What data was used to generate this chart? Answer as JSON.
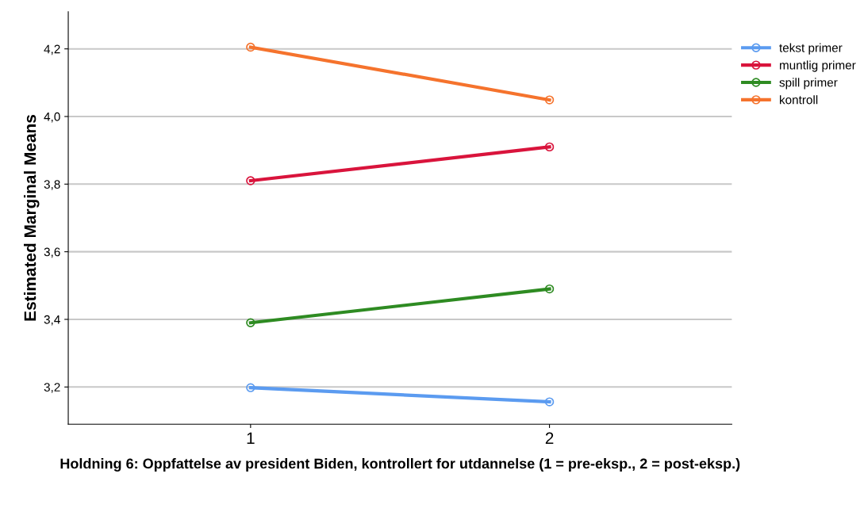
{
  "chart_data": {
    "type": "line",
    "xlabel": "Holdning 6: Oppfattelse av president Biden, kontrollert for utdannelse (1 = pre-eksp., 2 = post-eksp.)",
    "ylabel": "Estimated Marginal Means",
    "categories": [
      "1",
      "2"
    ],
    "series": [
      {
        "name": "tekst primer",
        "color": "#5b9bf0",
        "values": [
          3.198,
          3.156
        ]
      },
      {
        "name": "muntlig primer",
        "color": "#d9143c",
        "values": [
          3.81,
          3.91
        ]
      },
      {
        "name": "spill primer",
        "color": "#2e8b22",
        "values": [
          3.39,
          3.49
        ]
      },
      {
        "name": "kontroll",
        "color": "#f5732d",
        "values": [
          4.205,
          4.049
        ]
      }
    ],
    "ylim": [
      3.09,
      4.31
    ],
    "yticks": [
      {
        "value": 3.2,
        "label": "3,2"
      },
      {
        "value": 3.4,
        "label": "3,4"
      },
      {
        "value": 3.6,
        "label": "3,6"
      },
      {
        "value": 3.8,
        "label": "3,8"
      },
      {
        "value": 4.0,
        "label": "4,0"
      },
      {
        "value": 4.2,
        "label": "4,2"
      }
    ],
    "grid": "y",
    "legend": "right",
    "marker": "circle",
    "line_style": "solid"
  }
}
